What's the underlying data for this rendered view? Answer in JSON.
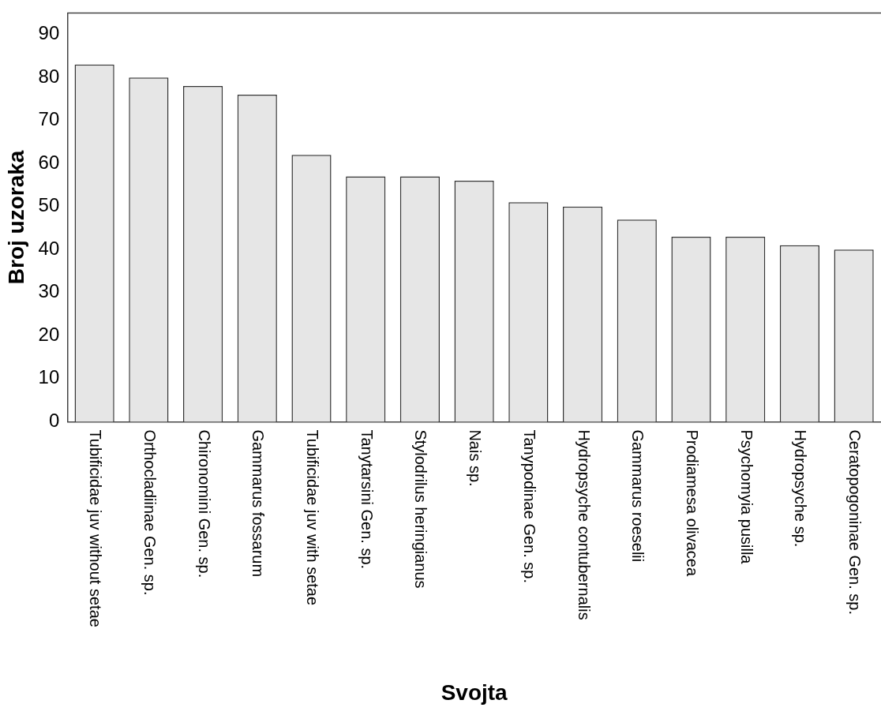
{
  "chart_data": {
    "type": "bar",
    "xlabel": "Svojta",
    "ylabel": "Broj uzoraka",
    "categories": [
      "Tubificidae juv without setae",
      "Orthocladiinae Gen. sp.",
      "Chironomini Gen. sp.",
      "Gammarus fossarum",
      "Tubificidae juv with setae",
      "Tanytarsini Gen. sp.",
      "Stylodrilus heringianus",
      "Nais sp.",
      "Tanypodinae Gen. sp.",
      "Hydropsyche contubernalis",
      "Gammarus roeselii",
      "Prodiamesa olivacea",
      "Psychomyia pusilla",
      "Hydropsyche sp.",
      "Ceratopogoninae Gen. sp."
    ],
    "values": [
      83,
      80,
      78,
      76,
      62,
      57,
      57,
      56,
      51,
      50,
      47,
      43,
      43,
      41,
      40
    ],
    "color": "#e6e6e6",
    "ylim": [
      0,
      95
    ],
    "yticks": [
      0,
      10,
      20,
      30,
      40,
      50,
      60,
      70,
      80,
      90
    ],
    "grid": false,
    "legend": false
  }
}
